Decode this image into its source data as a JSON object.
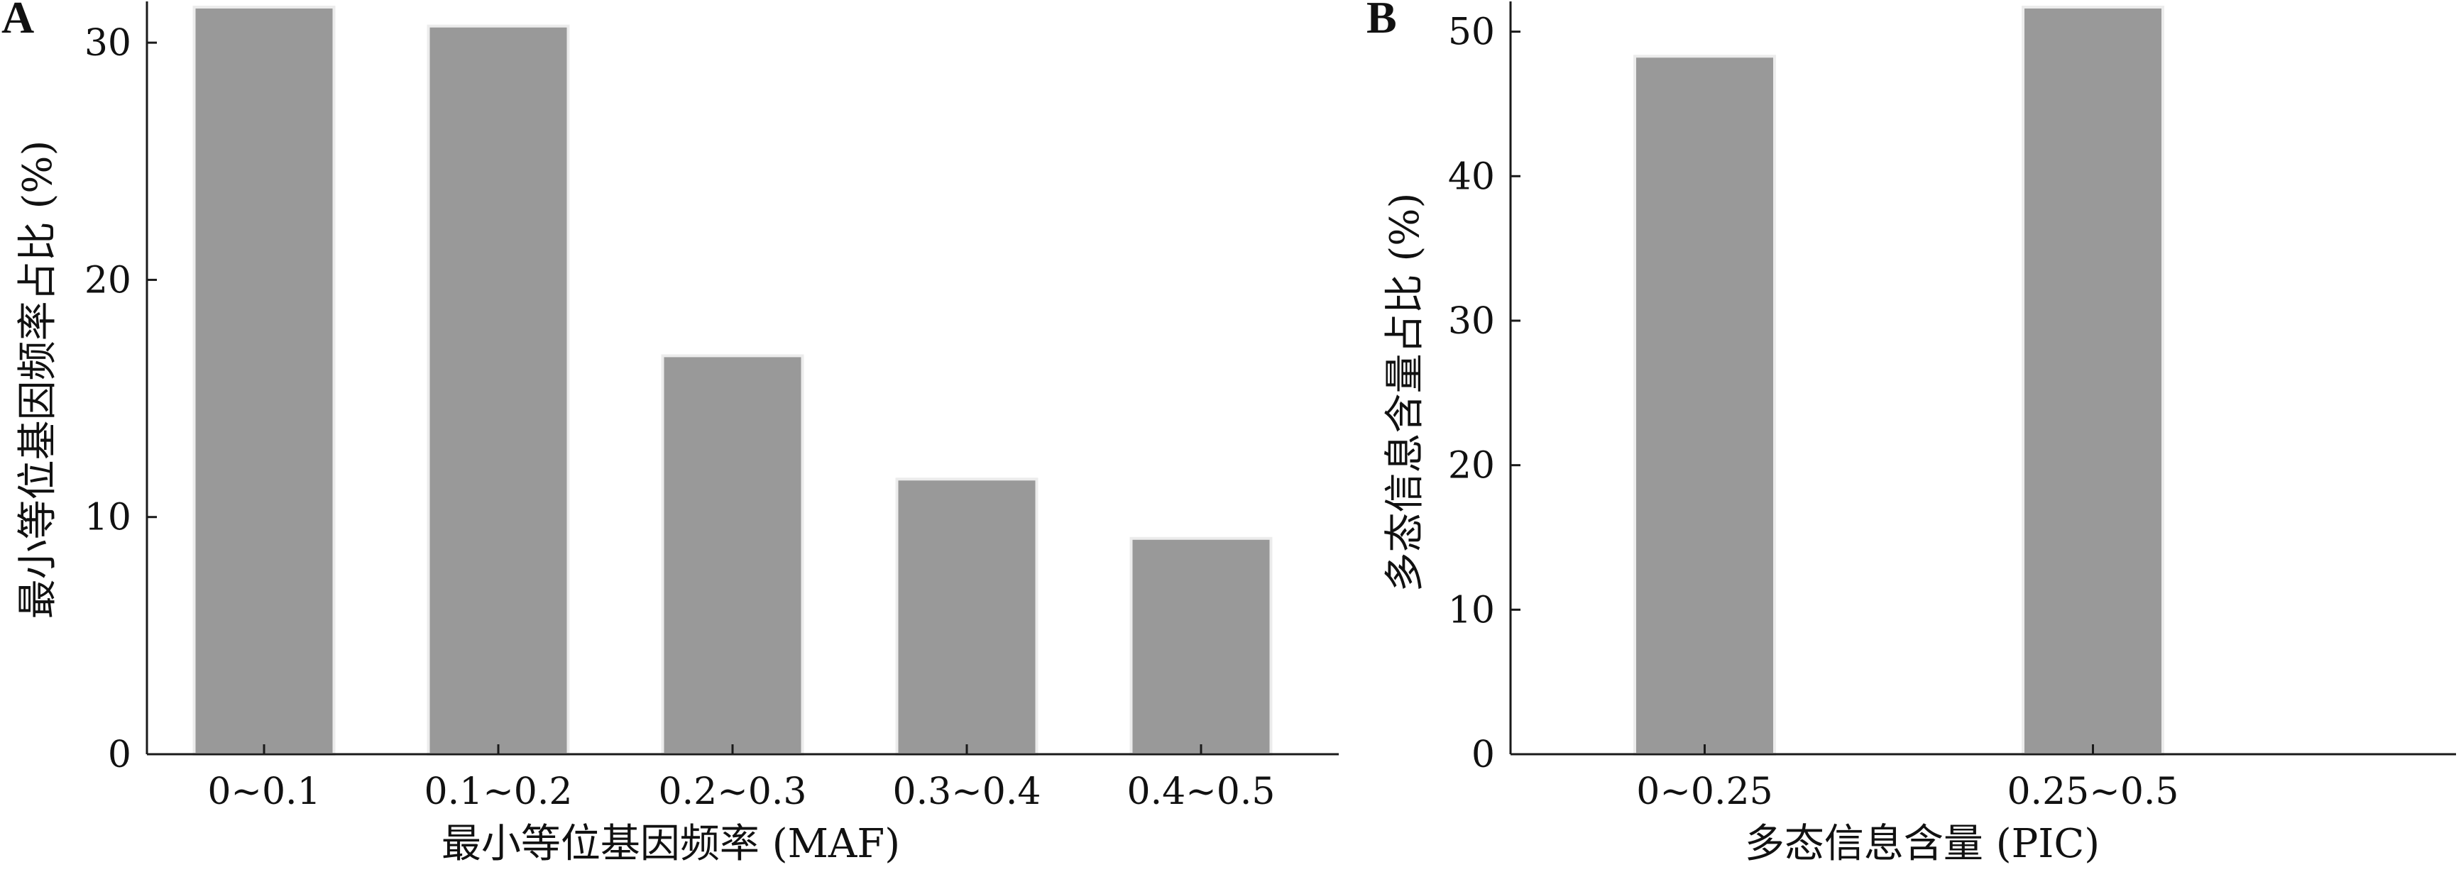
{
  "figure": {
    "panels": [
      "A",
      "B"
    ]
  },
  "chart_data": [
    {
      "panel": "A",
      "type": "bar",
      "categories": [
        "0~0.1",
        "0.1~0.2",
        "0.2~0.3",
        "0.3~0.4",
        "0.4~0.5"
      ],
      "values": [
        31.5,
        30.7,
        16.8,
        11.6,
        9.1
      ],
      "xlabel": "最小等位基因频率 (MAF)",
      "ylabel": "最小等位基因频率占比 (%)",
      "ylim": [
        0,
        31.5
      ],
      "yticks": [
        0,
        10,
        20,
        30
      ],
      "grid": false,
      "bar_color": "#999999"
    },
    {
      "panel": "B",
      "type": "bar",
      "categories": [
        "0~0.25",
        "0.25~0.5"
      ],
      "values": [
        48.3,
        51.7
      ],
      "xlabel": "多态信息含量 (PIC)",
      "ylabel": "多态信息含量占比 (%)",
      "ylim": [
        0,
        51.7
      ],
      "yticks": [
        0,
        10,
        20,
        30,
        40,
        50
      ],
      "grid": false,
      "bar_color": "#999999"
    }
  ]
}
